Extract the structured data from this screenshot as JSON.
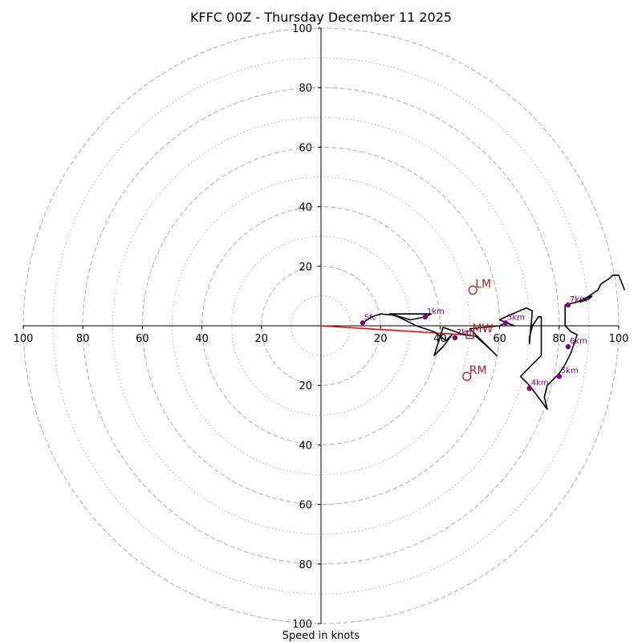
{
  "chart_data": {
    "type": "hodograph",
    "title": "KFFC 00Z - Thursday December 11 2025",
    "xlabel": "Speed in knots",
    "range": [
      -100,
      100
    ],
    "rings_major": [
      20,
      40,
      60,
      80,
      100
    ],
    "rings_minor": [
      10,
      30,
      50,
      70,
      90
    ],
    "tick_values": [
      20,
      40,
      60,
      80,
      100
    ],
    "x_tick_labels": [
      "100",
      "80",
      "60",
      "40",
      "20",
      "20",
      "40",
      "60",
      "80",
      "100"
    ],
    "y_tick_labels_top": [
      "20",
      "40",
      "60",
      "80",
      "100"
    ],
    "y_tick_labels_bottom": [
      "20",
      "40",
      "60",
      "80",
      "100"
    ],
    "grid": true,
    "colors": {
      "trace": "#000000",
      "height_marker": "#800080",
      "storm_motion": "#b22222",
      "shear_vector": "#ff0000",
      "grid": "#bbbbbb"
    },
    "trace": [
      [
        14,
        1
      ],
      [
        17,
        3
      ],
      [
        20,
        4
      ],
      [
        25,
        3.5
      ],
      [
        30,
        2
      ],
      [
        35,
        3
      ],
      [
        37,
        4
      ],
      [
        23,
        4
      ],
      [
        26,
        3
      ],
      [
        32,
        0
      ],
      [
        38,
        -2
      ],
      [
        42,
        -5
      ],
      [
        44,
        -3
      ],
      [
        41,
        -7
      ],
      [
        38,
        -10
      ],
      [
        41,
        -0.5
      ],
      [
        48,
        -3
      ],
      [
        52,
        -3.5
      ],
      [
        57,
        -8
      ],
      [
        59,
        -10
      ],
      [
        53,
        -4
      ],
      [
        50,
        -1
      ],
      [
        60,
        0
      ],
      [
        62,
        1
      ],
      [
        65,
        0
      ],
      [
        60,
        2
      ],
      [
        62,
        3
      ],
      [
        69,
        6
      ],
      [
        71,
        5
      ],
      [
        70,
        -6
      ],
      [
        70,
        -4
      ],
      [
        71,
        0
      ],
      [
        73,
        3
      ],
      [
        74,
        3
      ],
      [
        74,
        -10
      ],
      [
        70,
        -14
      ],
      [
        67,
        -17
      ],
      [
        70,
        -20
      ],
      [
        76,
        -28
      ],
      [
        75,
        -24
      ],
      [
        76,
        -20
      ],
      [
        80,
        -16
      ],
      [
        82,
        -13
      ],
      [
        84,
        -9
      ],
      [
        86,
        -3
      ],
      [
        84,
        -2
      ],
      [
        83,
        -1
      ],
      [
        82,
        0
      ],
      [
        82,
        2
      ],
      [
        82,
        7
      ],
      [
        86,
        8
      ],
      [
        91,
        10
      ],
      [
        90,
        9
      ],
      [
        87,
        8
      ],
      [
        90,
        10
      ],
      [
        93,
        12
      ],
      [
        94,
        14
      ],
      [
        97,
        16
      ],
      [
        98,
        17
      ],
      [
        100,
        17
      ],
      [
        102,
        12
      ]
    ],
    "height_markers": [
      {
        "label": "Sfc",
        "u": 14,
        "v": 1
      },
      {
        "label": "1km",
        "u": 35,
        "v": 3
      },
      {
        "label": "2km",
        "u": 45,
        "v": -4
      },
      {
        "label": "3km",
        "u": 62,
        "v": 1
      },
      {
        "label": "4km",
        "u": 70,
        "v": -21
      },
      {
        "label": "5km",
        "u": 80,
        "v": -17
      },
      {
        "label": "6km",
        "u": 83,
        "v": -7
      },
      {
        "label": "7km",
        "u": 83,
        "v": 7
      }
    ],
    "storm_motion": [
      {
        "label": "LM",
        "u": 51,
        "v": 12,
        "marker": "circle"
      },
      {
        "label": "MW",
        "u": 50,
        "v": -3,
        "marker": "square"
      },
      {
        "label": "RM",
        "u": 49,
        "v": -17,
        "marker": "circle"
      }
    ],
    "shear_vector": {
      "from": [
        0,
        0
      ],
      "to": [
        48,
        -3
      ]
    }
  }
}
